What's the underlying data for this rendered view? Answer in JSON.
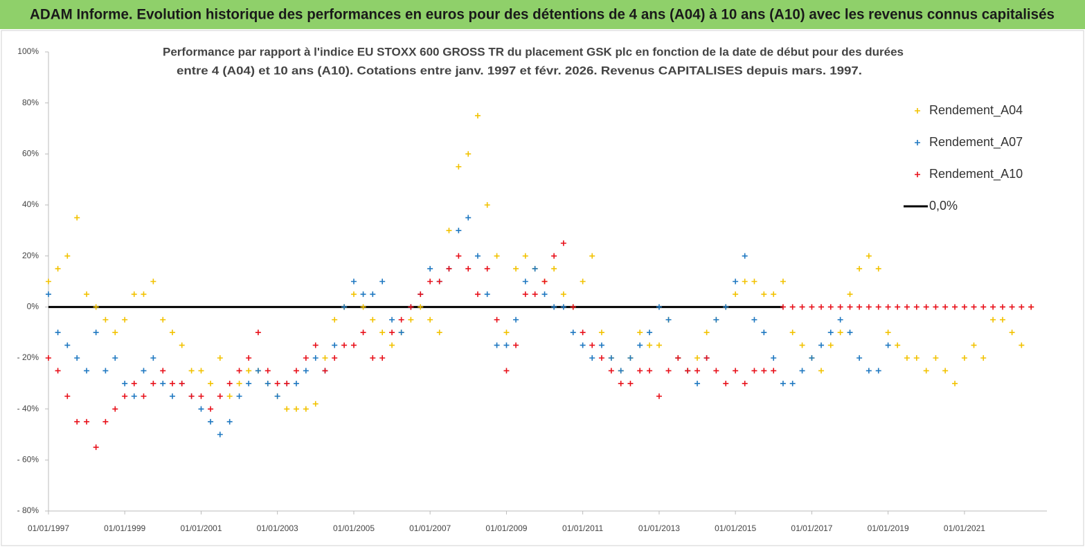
{
  "chart_data": {
    "type": "scatter",
    "title": "ADAM Informe. Evolution historique des performances en euros pour des détentions de 4 ans (A04) à 10 ans (A10) avec les revenus connus capitalisés",
    "subtitle": [
      "Performance par rapport à l'indice EU STOXX 600 GROSS TR  du placement GSK plc en fonction de la date de début pour des durées",
      "entre 4 (A04) et 10 ans (A10).  Cotations entre janv. 1997 et févr. 2026. Revenus CAPITALISES depuis mars. 1997."
    ],
    "x": [
      "01/01/1997",
      "01/04/1997",
      "01/07/1997",
      "01/10/1997",
      "01/01/1998",
      "01/04/1998",
      "01/07/1998",
      "01/10/1998",
      "01/01/1999",
      "01/04/1999",
      "01/07/1999",
      "01/10/1999",
      "01/01/2000",
      "01/04/2000",
      "01/07/2000",
      "01/10/2000",
      "01/01/2001",
      "01/04/2001",
      "01/07/2001",
      "01/10/2001",
      "01/01/2002",
      "01/04/2002",
      "01/07/2002",
      "01/10/2002",
      "01/01/2003",
      "01/04/2003",
      "01/07/2003",
      "01/10/2003",
      "01/01/2004",
      "01/04/2004",
      "01/07/2004",
      "01/10/2004",
      "01/01/2005",
      "01/04/2005",
      "01/07/2005",
      "01/10/2005",
      "01/01/2006",
      "01/04/2006",
      "01/07/2006",
      "01/10/2006",
      "01/01/2007",
      "01/04/2007",
      "01/07/2007",
      "01/10/2007",
      "01/01/2008",
      "01/04/2008",
      "01/07/2008",
      "01/10/2008",
      "01/01/2009",
      "01/04/2009",
      "01/07/2009",
      "01/10/2009",
      "01/01/2010",
      "01/04/2010",
      "01/07/2010",
      "01/10/2010",
      "01/01/2011",
      "01/04/2011",
      "01/07/2011",
      "01/10/2011",
      "01/01/2012",
      "01/04/2012",
      "01/07/2012",
      "01/10/2012",
      "01/01/2013",
      "01/04/2013",
      "01/07/2013",
      "01/10/2013",
      "01/01/2014",
      "01/04/2014",
      "01/07/2014",
      "01/10/2014",
      "01/01/2015",
      "01/04/2015",
      "01/07/2015",
      "01/10/2015",
      "01/01/2016",
      "01/04/2016",
      "01/07/2016",
      "01/10/2016",
      "01/01/2017",
      "01/04/2017",
      "01/07/2017",
      "01/10/2017",
      "01/01/2018",
      "01/04/2018",
      "01/07/2018",
      "01/10/2018",
      "01/01/2019",
      "01/04/2019",
      "01/07/2019",
      "01/10/2019",
      "01/01/2020",
      "01/04/2020",
      "01/07/2020",
      "01/10/2020",
      "01/01/2021",
      "01/04/2021",
      "01/07/2021",
      "01/10/2021",
      "01/01/2022",
      "01/04/2022",
      "01/07/2022",
      "01/10/2022"
    ],
    "series": [
      {
        "name": "Rendement_A04",
        "color": "#f2c200",
        "values": [
          10,
          15,
          20,
          35,
          5,
          0,
          -5,
          -10,
          -5,
          5,
          5,
          10,
          -5,
          -10,
          -15,
          -25,
          -25,
          -30,
          -20,
          -35,
          -30,
          -25,
          -25,
          -30,
          -35,
          -40,
          -40,
          -40,
          -38,
          -20,
          -5,
          0,
          5,
          0,
          -5,
          -10,
          -15,
          -10,
          -5,
          0,
          -5,
          -10,
          30,
          55,
          60,
          75,
          40,
          20,
          -10,
          15,
          20,
          15,
          10,
          15,
          5,
          0,
          10,
          20,
          -10,
          -20,
          -25,
          -20,
          -10,
          -15,
          -15,
          -5,
          -20,
          -25,
          -20,
          -10,
          -5,
          0,
          5,
          10,
          10,
          5,
          5,
          10,
          -10,
          -15,
          -20,
          -25,
          -15,
          -10,
          5,
          15,
          20,
          15,
          -10,
          -15,
          -20,
          -20,
          -25,
          -20,
          -25,
          -30,
          -20,
          -15,
          -20,
          -5,
          -5,
          -10,
          -15,
          0
        ]
      },
      {
        "name": "Rendement_A07",
        "color": "#1f78c1",
        "values": [
          5,
          -10,
          -15,
          -20,
          -25,
          -10,
          -25,
          -20,
          -30,
          -35,
          -25,
          -20,
          -30,
          -35,
          -30,
          -35,
          -40,
          -45,
          -50,
          -45,
          -35,
          -30,
          -25,
          -30,
          -35,
          -30,
          -30,
          -25,
          -20,
          -25,
          -15,
          0,
          10,
          5,
          5,
          10,
          -5,
          -10,
          0,
          5,
          15,
          10,
          15,
          30,
          35,
          20,
          5,
          -15,
          -15,
          -5,
          10,
          15,
          5,
          0,
          0,
          -10,
          -15,
          -20,
          -15,
          -20,
          -25,
          -20,
          -15,
          -10,
          0,
          -5,
          -20,
          -25,
          -30,
          -20,
          -5,
          0,
          10,
          20,
          -5,
          -10,
          -20,
          -30,
          -30,
          -25,
          -20,
          -15,
          -10,
          -5,
          -10,
          -20,
          -25,
          -25,
          -15,
          null,
          null,
          null,
          null,
          null,
          null,
          null,
          null,
          null,
          null,
          null,
          null,
          null,
          null,
          null
        ]
      },
      {
        "name": "Rendement_A10",
        "color": "#e8101a",
        "values": [
          -20,
          -25,
          -35,
          -45,
          -45,
          -55,
          -45,
          -40,
          -35,
          -30,
          -35,
          -30,
          -25,
          -30,
          -30,
          -35,
          -35,
          -40,
          -35,
          -30,
          -25,
          -20,
          -10,
          -25,
          -30,
          -30,
          -25,
          -20,
          -15,
          -25,
          -20,
          -15,
          -15,
          -10,
          -20,
          -20,
          -10,
          -5,
          0,
          5,
          10,
          10,
          15,
          20,
          15,
          5,
          15,
          -5,
          -25,
          -15,
          5,
          5,
          10,
          20,
          25,
          0,
          -10,
          -15,
          -20,
          -25,
          -30,
          -30,
          -25,
          -25,
          -35,
          -25,
          -20,
          -25,
          -25,
          -20,
          -25,
          -30,
          -25,
          -30,
          -25,
          -25,
          -25,
          0,
          0,
          0,
          0,
          0,
          0,
          0,
          0,
          0,
          0,
          0,
          0,
          0,
          0,
          0,
          0,
          0,
          0,
          0,
          0,
          0,
          0,
          0,
          0,
          0,
          0,
          0
        ]
      }
    ],
    "reference_line": {
      "name": "0,0%",
      "value": 0,
      "color": "#000000"
    },
    "xlim": [
      "01/01/1997",
      "01/03/2023"
    ],
    "xticks": [
      "01/01/1997",
      "01/01/1999",
      "01/01/2001",
      "01/01/2003",
      "01/01/2005",
      "01/01/2007",
      "01/01/2009",
      "01/01/2011",
      "01/01/2013",
      "01/01/2015",
      "01/01/2017",
      "01/01/2019",
      "01/01/2021"
    ],
    "ylim": [
      -80,
      100
    ],
    "yticks": [
      {
        "value": 100,
        "label": "100%"
      },
      {
        "value": 80,
        "label": "80%"
      },
      {
        "value": 60,
        "label": "60%"
      },
      {
        "value": 40,
        "label": "40%"
      },
      {
        "value": 20,
        "label": "20%"
      },
      {
        "value": 0,
        "label": "0%"
      },
      {
        "value": -20,
        "label": "- 20%"
      },
      {
        "value": -40,
        "label": "- 40%"
      },
      {
        "value": -60,
        "label": "- 60%"
      },
      {
        "value": -80,
        "label": "- 80%"
      }
    ]
  }
}
